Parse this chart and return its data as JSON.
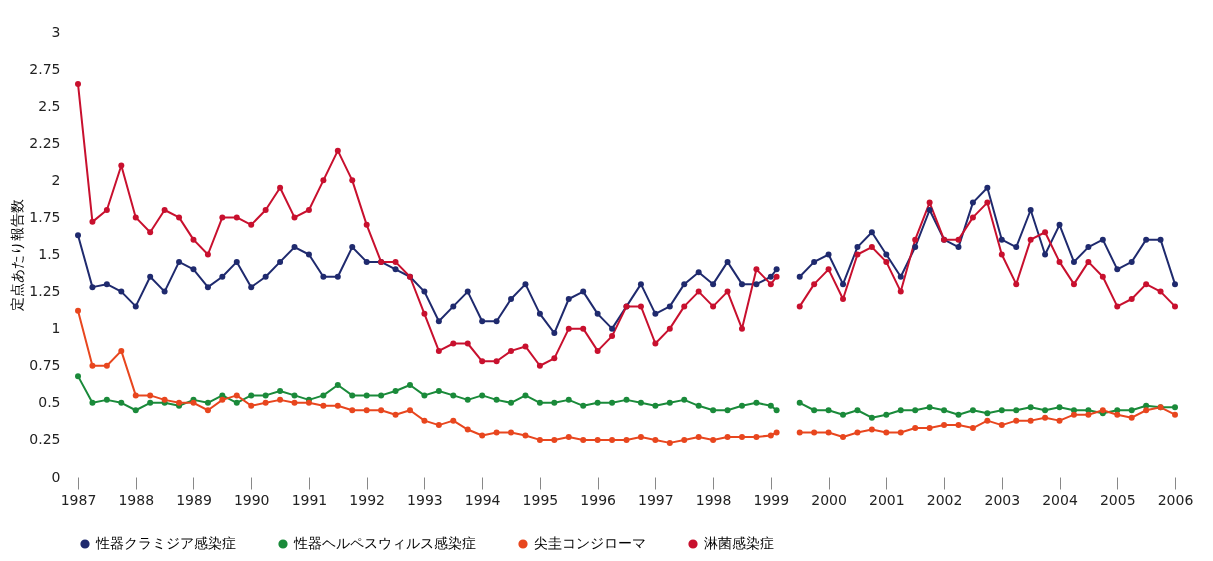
{
  "chart_data": {
    "type": "line",
    "ylabel": "定点あたり報告数",
    "marker": "circle",
    "legend": "bottom",
    "xlim": [
      1987,
      2006
    ],
    "ylim": [
      0,
      3
    ],
    "xticks": [
      1987,
      1988,
      1989,
      1990,
      1991,
      1992,
      1993,
      1994,
      1995,
      1996,
      1997,
      1998,
      1999,
      2000,
      2001,
      2002,
      2003,
      2004,
      2005,
      2006
    ],
    "yticks": [
      0,
      0.25,
      0.5,
      0.75,
      1,
      1.25,
      1.5,
      1.75,
      2,
      2.25,
      2.5,
      2.75,
      3
    ],
    "x": [
      1987,
      1987.25,
      1987.5,
      1987.75,
      1988,
      1988.25,
      1988.5,
      1988.75,
      1989,
      1989.25,
      1989.5,
      1989.75,
      1990,
      1990.25,
      1990.5,
      1990.75,
      1991,
      1991.25,
      1991.5,
      1991.75,
      1992,
      1992.25,
      1992.5,
      1992.75,
      1993,
      1993.25,
      1993.5,
      1993.75,
      1994,
      1994.25,
      1994.5,
      1994.75,
      1995,
      1995.25,
      1995.5,
      1995.75,
      1996,
      1996.25,
      1996.5,
      1996.75,
      1997,
      1997.25,
      1997.5,
      1997.75,
      1998,
      1998.25,
      1998.5,
      1998.75,
      1999,
      1999.1,
      1999.3,
      1999.5,
      1999.75,
      2000,
      2000.25,
      2000.5,
      2000.75,
      2001,
      2001.25,
      2001.5,
      2001.75,
      2002,
      2002.25,
      2002.5,
      2002.75,
      2003,
      2003.25,
      2003.5,
      2003.75,
      2004,
      2004.25,
      2004.5,
      2004.75,
      2005,
      2005.25,
      2005.5,
      2005.75,
      2006
    ],
    "series": [
      {
        "name": "性器クラミジア感染症",
        "color": "#1f2a6e",
        "values": [
          1.63,
          1.28,
          1.3,
          1.25,
          1.15,
          1.35,
          1.25,
          1.45,
          1.4,
          1.28,
          1.35,
          1.45,
          1.28,
          1.35,
          1.45,
          1.55,
          1.5,
          1.35,
          1.35,
          1.55,
          1.45,
          1.45,
          1.4,
          1.35,
          1.25,
          1.05,
          1.15,
          1.25,
          1.05,
          1.05,
          1.2,
          1.3,
          1.1,
          0.97,
          1.2,
          1.25,
          1.1,
          1.0,
          1.15,
          1.3,
          1.1,
          1.15,
          1.3,
          1.38,
          1.3,
          1.45,
          1.3,
          1.3,
          1.35,
          1.4,
          null,
          1.35,
          1.45,
          1.5,
          1.3,
          1.55,
          1.65,
          1.5,
          1.35,
          1.55,
          1.8,
          1.6,
          1.55,
          1.85,
          1.95,
          1.6,
          1.55,
          1.8,
          1.5,
          1.7,
          1.45,
          1.55,
          1.6,
          1.4,
          1.45,
          1.6,
          1.6,
          1.3
        ]
      },
      {
        "name": "性器ヘルペスウィルス感染症",
        "color": "#1a8a3a",
        "values": [
          0.68,
          0.5,
          0.52,
          0.5,
          0.45,
          0.5,
          0.5,
          0.48,
          0.52,
          0.5,
          0.55,
          0.5,
          0.55,
          0.55,
          0.58,
          0.55,
          0.52,
          0.55,
          0.62,
          0.55,
          0.55,
          0.55,
          0.58,
          0.62,
          0.55,
          0.58,
          0.55,
          0.52,
          0.55,
          0.52,
          0.5,
          0.55,
          0.5,
          0.5,
          0.52,
          0.48,
          0.5,
          0.5,
          0.52,
          0.5,
          0.48,
          0.5,
          0.52,
          0.48,
          0.45,
          0.45,
          0.48,
          0.5,
          0.48,
          0.45,
          null,
          0.5,
          0.45,
          0.45,
          0.42,
          0.45,
          0.4,
          0.42,
          0.45,
          0.45,
          0.47,
          0.45,
          0.42,
          0.45,
          0.43,
          0.45,
          0.45,
          0.47,
          0.45,
          0.47,
          0.45,
          0.45,
          0.43,
          0.45,
          0.45,
          0.48,
          0.47,
          0.47
        ]
      },
      {
        "name": "尖圭コンジローマ",
        "color": "#e8461e",
        "values": [
          1.12,
          0.75,
          0.75,
          0.85,
          0.55,
          0.55,
          0.52,
          0.5,
          0.5,
          0.45,
          0.52,
          0.55,
          0.48,
          0.5,
          0.52,
          0.5,
          0.5,
          0.48,
          0.48,
          0.45,
          0.45,
          0.45,
          0.42,
          0.45,
          0.38,
          0.35,
          0.38,
          0.32,
          0.28,
          0.3,
          0.3,
          0.28,
          0.25,
          0.25,
          0.27,
          0.25,
          0.25,
          0.25,
          0.25,
          0.27,
          0.25,
          0.23,
          0.25,
          0.27,
          0.25,
          0.27,
          0.27,
          0.27,
          0.28,
          0.3,
          null,
          0.3,
          0.3,
          0.3,
          0.27,
          0.3,
          0.32,
          0.3,
          0.3,
          0.33,
          0.33,
          0.35,
          0.35,
          0.33,
          0.38,
          0.35,
          0.38,
          0.38,
          0.4,
          0.38,
          0.42,
          0.42,
          0.45,
          0.42,
          0.4,
          0.45,
          0.47,
          0.42
        ]
      },
      {
        "name": "淋菌感染症",
        "color": "#c8102e",
        "values": [
          2.65,
          1.72,
          1.8,
          2.1,
          1.75,
          1.65,
          1.8,
          1.75,
          1.6,
          1.5,
          1.75,
          1.75,
          1.7,
          1.8,
          1.95,
          1.75,
          1.8,
          2.0,
          2.2,
          2.0,
          1.7,
          1.45,
          1.45,
          1.35,
          1.1,
          0.85,
          0.9,
          0.9,
          0.78,
          0.78,
          0.85,
          0.88,
          0.75,
          0.8,
          1.0,
          1.0,
          0.85,
          0.95,
          1.15,
          1.15,
          0.9,
          1.0,
          1.15,
          1.25,
          1.15,
          1.25,
          1.0,
          1.4,
          1.3,
          1.35,
          null,
          1.15,
          1.3,
          1.4,
          1.2,
          1.5,
          1.55,
          1.45,
          1.25,
          1.6,
          1.85,
          1.6,
          1.6,
          1.75,
          1.85,
          1.5,
          1.3,
          1.6,
          1.65,
          1.45,
          1.3,
          1.45,
          1.35,
          1.15,
          1.2,
          1.3,
          1.25,
          1.15
        ]
      }
    ]
  }
}
